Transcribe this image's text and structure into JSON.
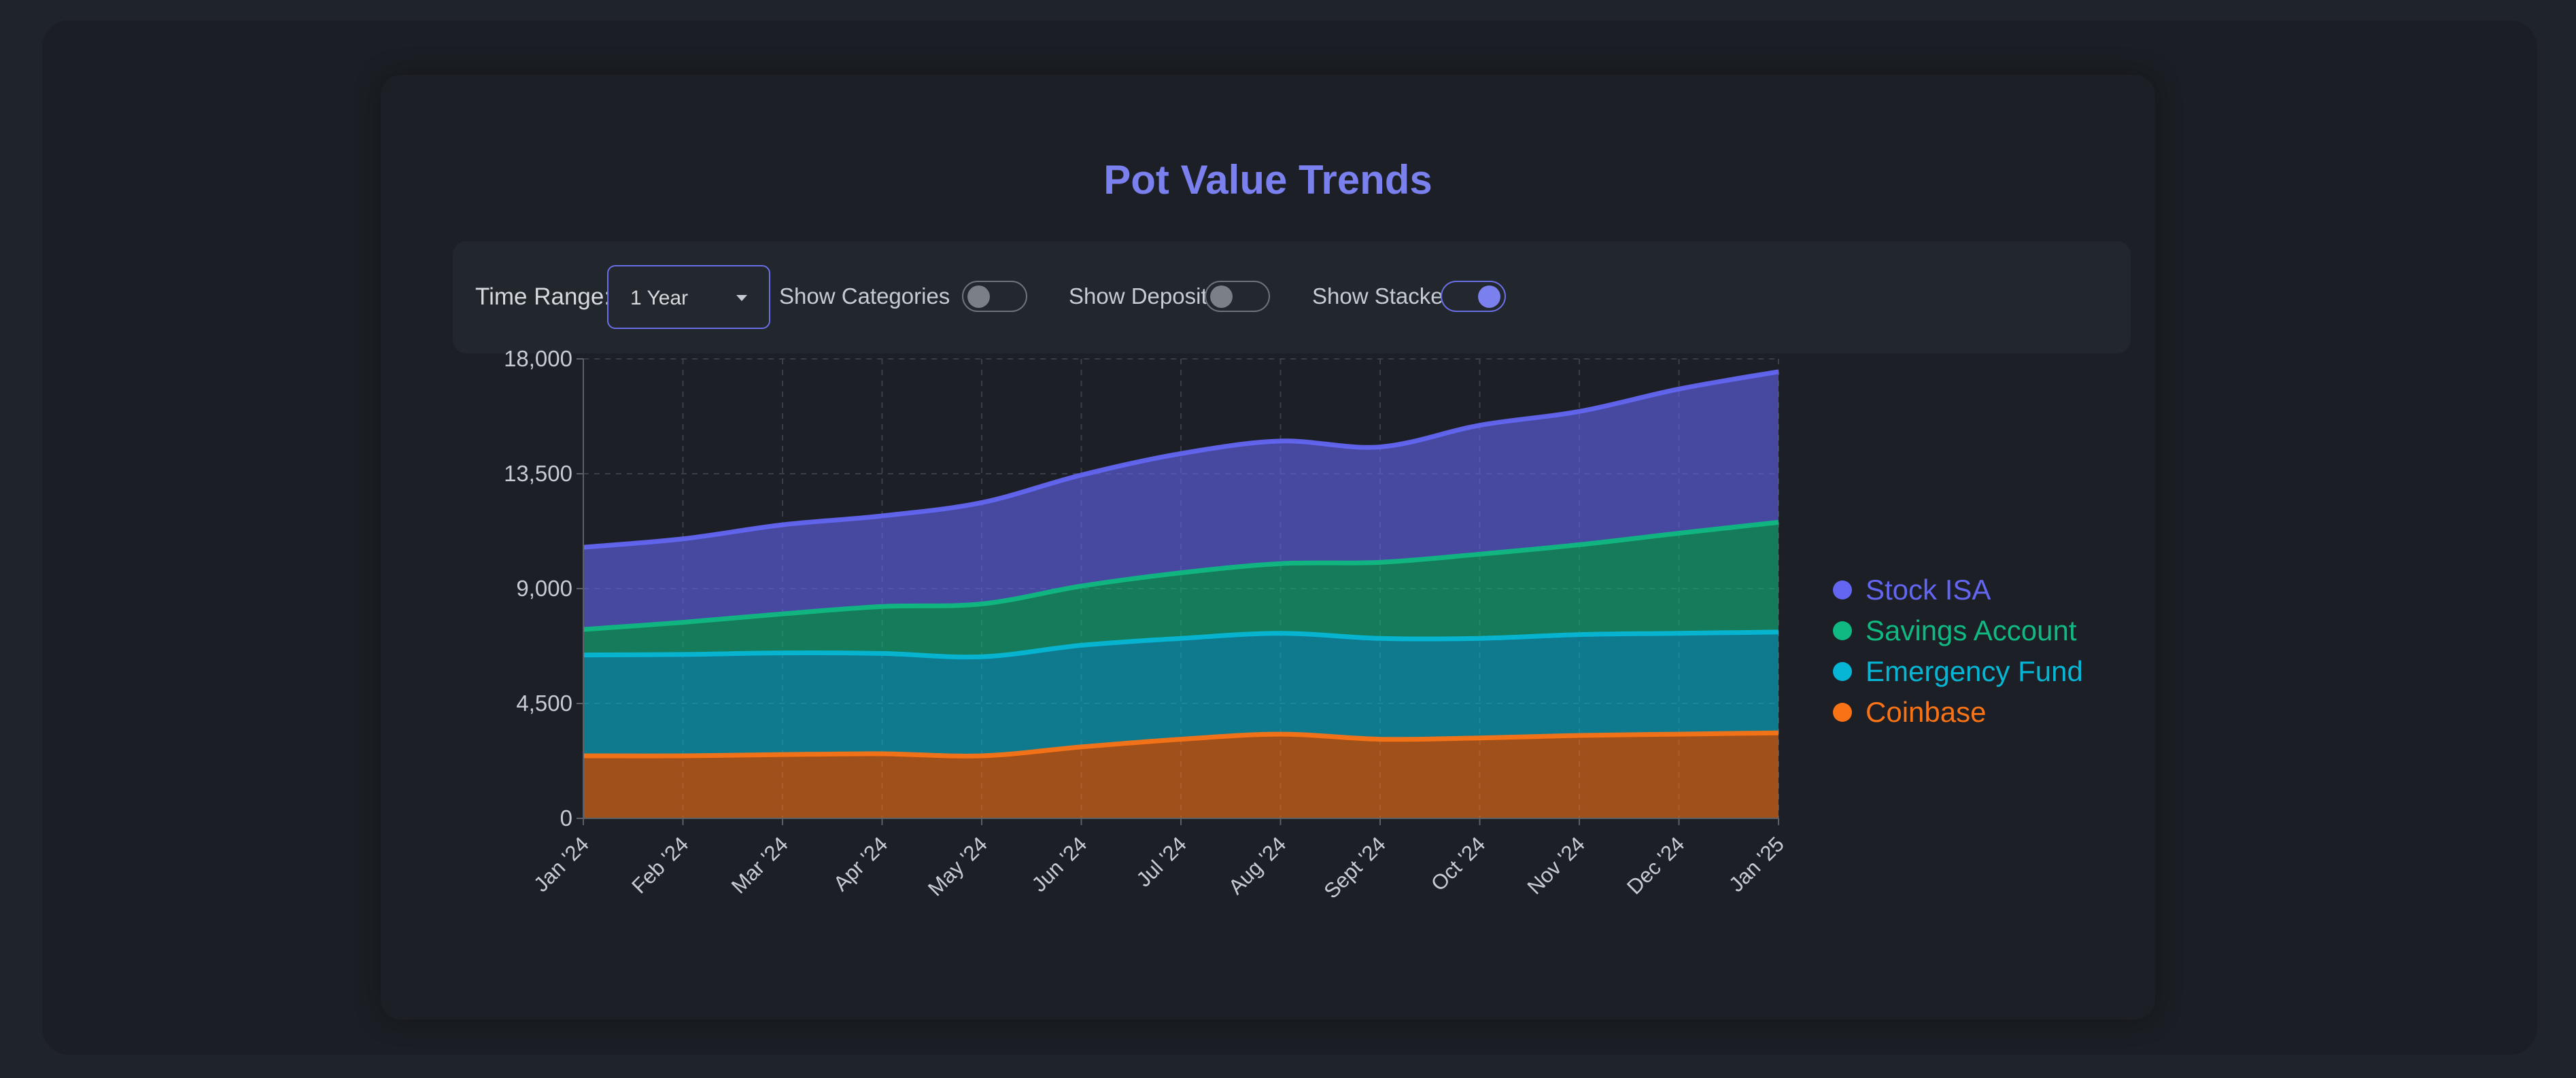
{
  "title": "Pot Value Trends",
  "controls": {
    "time_range_label": "Time Range:",
    "time_range_value": "1 Year",
    "show_categories_label": "Show Categories",
    "show_deposits_label": "Show Deposits",
    "show_stacked_label": "Show Stacked",
    "show_categories": false,
    "show_deposits": false,
    "show_stacked": true
  },
  "chart_data": {
    "type": "area",
    "stacked": true,
    "categories": [
      "Jan '24",
      "Feb '24",
      "Mar '24",
      "Apr '24",
      "May '24",
      "Jun '24",
      "Jul '24",
      "Aug '24",
      "Sept '24",
      "Oct '24",
      "Nov '24",
      "Dec '24",
      "Jan '25"
    ],
    "yticks": [
      "0",
      "4,500",
      "9,000",
      "13,500",
      "18,000"
    ],
    "ylim": [
      0,
      18000
    ],
    "grid": true,
    "legend_position": "right",
    "series": [
      {
        "name": "Coinbase",
        "color": "#f97316",
        "values": [
          2450,
          2450,
          2500,
          2530,
          2450,
          2800,
          3100,
          3300,
          3100,
          3150,
          3250,
          3300,
          3350
        ]
      },
      {
        "name": "Emergency Fund",
        "color": "#06b6d4",
        "values": [
          3950,
          3970,
          3980,
          3930,
          3880,
          3980,
          3950,
          3950,
          3950,
          3900,
          3950,
          3950,
          3950
        ]
      },
      {
        "name": "Savings Account",
        "color": "#10b981",
        "values": [
          1000,
          1260,
          1530,
          1840,
          2070,
          2320,
          2570,
          2730,
          2980,
          3300,
          3520,
          3920,
          4300
        ]
      },
      {
        "name": "Stock ISA",
        "color": "#6366f1",
        "values": [
          3220,
          3270,
          3490,
          3550,
          3970,
          4350,
          4670,
          4800,
          4520,
          5050,
          5220,
          5650,
          5900
        ]
      }
    ],
    "legend_order": [
      "Stock ISA",
      "Savings Account",
      "Emergency Fund",
      "Coinbase"
    ]
  }
}
